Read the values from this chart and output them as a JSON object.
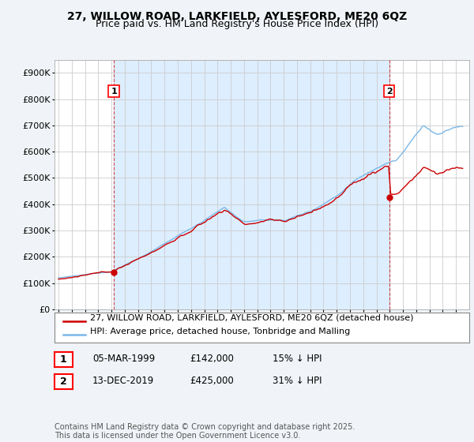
{
  "title": "27, WILLOW ROAD, LARKFIELD, AYLESFORD, ME20 6QZ",
  "subtitle": "Price paid vs. HM Land Registry's House Price Index (HPI)",
  "ylim": [
    0,
    950000
  ],
  "yticks": [
    0,
    100000,
    200000,
    300000,
    400000,
    500000,
    600000,
    700000,
    800000,
    900000
  ],
  "ytick_labels": [
    "£0",
    "£100K",
    "£200K",
    "£300K",
    "£400K",
    "£500K",
    "£600K",
    "£700K",
    "£800K",
    "£900K"
  ],
  "bg_color": "#f0f4f8",
  "plot_bg_color": "#ffffff",
  "shade_color": "#ddeeff",
  "grid_color": "#cccccc",
  "hpi_color": "#7ab8e8",
  "price_color": "#cc0000",
  "sale1_date": 1999.18,
  "sale1_price": 142000,
  "sale2_date": 2019.96,
  "sale2_price": 425000,
  "legend_line1": "27, WILLOW ROAD, LARKFIELD, AYLESFORD, ME20 6QZ (detached house)",
  "legend_line2": "HPI: Average price, detached house, Tonbridge and Malling",
  "table_row1": [
    "1",
    "05-MAR-1999",
    "£142,000",
    "15% ↓ HPI"
  ],
  "table_row2": [
    "2",
    "13-DEC-2019",
    "£425,000",
    "31% ↓ HPI"
  ],
  "footnote": "Contains HM Land Registry data © Crown copyright and database right 2025.\nThis data is licensed under the Open Government Licence v3.0.",
  "title_fontsize": 10,
  "subtitle_fontsize": 9,
  "axis_fontsize": 8,
  "legend_fontsize": 8,
  "table_fontsize": 8.5,
  "footnote_fontsize": 7
}
